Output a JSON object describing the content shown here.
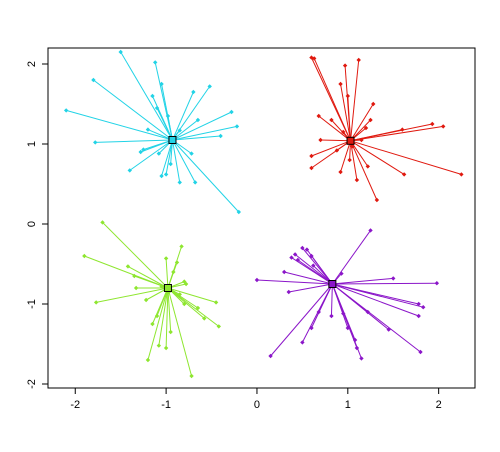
{
  "chart_data": {
    "type": "scatter",
    "title": "",
    "xlabel": "",
    "ylabel": "",
    "xlim": [
      -2.3,
      2.4
    ],
    "ylim": [
      -2.05,
      2.2
    ],
    "xticks": [
      -2,
      -1,
      0,
      1,
      2
    ],
    "yticks": [
      -2,
      -1,
      0,
      1,
      2
    ],
    "x_tick_labels": [
      "-2",
      "-1",
      "0",
      "1",
      "2"
    ],
    "y_tick_labels": [
      "-2",
      "-1",
      "0",
      "1",
      "2"
    ],
    "grid": false,
    "legend": "none",
    "series": [
      {
        "color": "#22d3e6",
        "centroid": [
          -0.93,
          1.05
        ],
        "points": [
          [
            -1.5,
            2.15
          ],
          [
            -1.8,
            1.8
          ],
          [
            -2.1,
            1.42
          ],
          [
            -1.78,
            1.02
          ],
          [
            -1.4,
            0.67
          ],
          [
            -1.25,
            0.93
          ],
          [
            -1.2,
            1.18
          ],
          [
            -1.1,
            1.45
          ],
          [
            -1.15,
            1.6
          ],
          [
            -1.05,
            1.75
          ],
          [
            -1.12,
            2.02
          ],
          [
            -1.08,
            0.88
          ],
          [
            -1.0,
            0.62
          ],
          [
            -1.05,
            0.6
          ],
          [
            -0.95,
            0.75
          ],
          [
            -0.85,
            0.52
          ],
          [
            -0.85,
            1.17
          ],
          [
            -0.72,
            0.88
          ],
          [
            -0.68,
            0.52
          ],
          [
            -0.65,
            1.3
          ],
          [
            -0.7,
            1.65
          ],
          [
            -0.52,
            1.72
          ],
          [
            -0.4,
            1.1
          ],
          [
            -0.28,
            1.4
          ],
          [
            -0.22,
            1.22
          ],
          [
            -0.2,
            0.15
          ],
          [
            -0.98,
            1.35
          ],
          [
            -1.28,
            0.9
          ]
        ]
      },
      {
        "color": "#e0190f",
        "centroid": [
          1.03,
          1.04
        ],
        "points": [
          [
            0.6,
            2.08
          ],
          [
            0.63,
            2.07
          ],
          [
            0.68,
            1.35
          ],
          [
            0.82,
            1.3
          ],
          [
            0.92,
            1.75
          ],
          [
            0.97,
            1.98
          ],
          [
            1.0,
            1.6
          ],
          [
            1.12,
            2.05
          ],
          [
            1.2,
            1.2
          ],
          [
            1.28,
            1.5
          ],
          [
            1.25,
            1.3
          ],
          [
            1.22,
            0.72
          ],
          [
            1.1,
            0.55
          ],
          [
            1.02,
            0.8
          ],
          [
            0.92,
            0.65
          ],
          [
            0.88,
            0.92
          ],
          [
            0.6,
            0.85
          ],
          [
            0.6,
            0.7
          ],
          [
            0.7,
            1.05
          ],
          [
            1.05,
            0.97
          ],
          [
            1.32,
            0.3
          ],
          [
            1.62,
            0.62
          ],
          [
            1.6,
            1.18
          ],
          [
            1.93,
            1.25
          ],
          [
            2.05,
            1.22
          ],
          [
            2.25,
            0.62
          ],
          [
            1.15,
            1.05
          ],
          [
            0.95,
            1.15
          ]
        ]
      },
      {
        "color": "#8ee62f",
        "centroid": [
          -0.98,
          -0.8
        ],
        "points": [
          [
            -1.7,
            0.02
          ],
          [
            -1.9,
            -0.4
          ],
          [
            -1.77,
            -0.98
          ],
          [
            -1.42,
            -0.53
          ],
          [
            -1.35,
            -0.65
          ],
          [
            -1.33,
            -0.8
          ],
          [
            -1.22,
            -0.95
          ],
          [
            -1.15,
            -1.25
          ],
          [
            -1.1,
            -1.15
          ],
          [
            -1.08,
            -1.52
          ],
          [
            -1.2,
            -1.7
          ],
          [
            -1.0,
            -1.55
          ],
          [
            -0.95,
            -1.35
          ],
          [
            -0.85,
            -0.88
          ],
          [
            -0.8,
            -1.0
          ],
          [
            -0.8,
            -0.72
          ],
          [
            -0.78,
            -0.75
          ],
          [
            -0.65,
            -1.05
          ],
          [
            -0.58,
            -1.18
          ],
          [
            -0.45,
            -0.98
          ],
          [
            -0.42,
            -1.28
          ],
          [
            -0.88,
            -0.48
          ],
          [
            -0.83,
            -0.28
          ],
          [
            -0.92,
            -0.6
          ],
          [
            -0.72,
            -1.9
          ],
          [
            -1.0,
            -0.43
          ],
          [
            -1.05,
            -0.78
          ],
          [
            -0.97,
            -0.85
          ]
        ]
      },
      {
        "color": "#8b16c9",
        "centroid": [
          0.83,
          -0.75
        ],
        "points": [
          [
            0.0,
            -0.7
          ],
          [
            0.15,
            -1.65
          ],
          [
            0.3,
            -0.6
          ],
          [
            0.38,
            -0.42
          ],
          [
            0.42,
            -0.38
          ],
          [
            0.45,
            -0.45
          ],
          [
            0.5,
            -0.3
          ],
          [
            0.55,
            -0.32
          ],
          [
            0.6,
            -0.4
          ],
          [
            0.62,
            -0.52
          ],
          [
            0.35,
            -0.85
          ],
          [
            0.5,
            -1.48
          ],
          [
            0.6,
            -1.3
          ],
          [
            0.68,
            -1.1
          ],
          [
            0.82,
            -1.15
          ],
          [
            0.95,
            -1.12
          ],
          [
            1.0,
            -1.3
          ],
          [
            1.08,
            -1.45
          ],
          [
            1.1,
            -1.55
          ],
          [
            1.15,
            -1.68
          ],
          [
            1.22,
            -1.1
          ],
          [
            1.45,
            -1.32
          ],
          [
            1.5,
            -0.68
          ],
          [
            1.78,
            -1.15
          ],
          [
            1.78,
            -1.0
          ],
          [
            1.83,
            -1.04
          ],
          [
            1.98,
            -0.74
          ],
          [
            1.8,
            -1.6
          ],
          [
            1.25,
            -0.08
          ],
          [
            0.93,
            -0.62
          ]
        ]
      }
    ]
  }
}
